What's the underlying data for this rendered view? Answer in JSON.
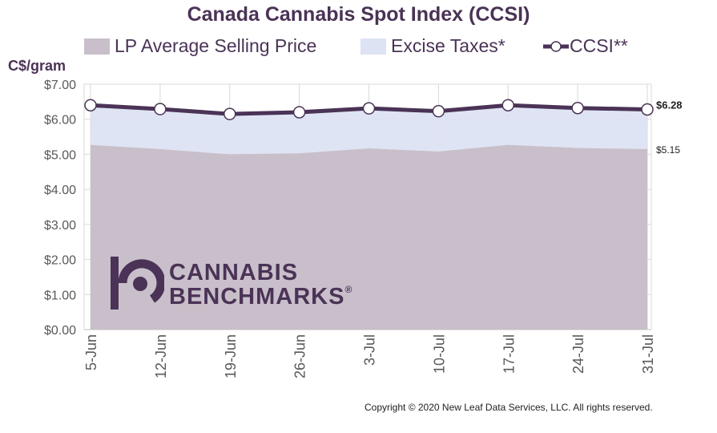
{
  "chart_data": {
    "type": "area",
    "title": "Canada Cannabis Spot Index (CCSI)",
    "ylabel": "C$/gram",
    "xlabel": "",
    "categories": [
      "5-Jun",
      "12-Jun",
      "19-Jun",
      "26-Jun",
      "3-Jul",
      "10-Jul",
      "17-Jul",
      "24-Jul",
      "31-Jul"
    ],
    "ylim": [
      0,
      7
    ],
    "yticks": [
      "$0.00",
      "$1.00",
      "$2.00",
      "$3.00",
      "$4.00",
      "$5.00",
      "$6.00",
      "$7.00"
    ],
    "grid": true,
    "legend_position": "top",
    "series": [
      {
        "name": "LP Average Selling Price",
        "kind": "area",
        "color": "#c8bfca",
        "values": [
          5.27,
          5.15,
          5.0,
          5.03,
          5.17,
          5.08,
          5.27,
          5.18,
          5.15
        ]
      },
      {
        "name": "Excise Taxes*",
        "kind": "stacked-area",
        "color": "#dde3f3",
        "values": [
          1.13,
          1.14,
          1.15,
          1.17,
          1.14,
          1.15,
          1.13,
          1.14,
          1.13
        ]
      },
      {
        "name": "CCSI**",
        "kind": "line",
        "color": "#4a3356",
        "values": [
          6.4,
          6.29,
          6.15,
          6.2,
          6.31,
          6.23,
          6.4,
          6.32,
          6.28
        ]
      }
    ],
    "annotations": [
      "$6.28",
      "$5.15"
    ]
  },
  "watermark": {
    "line1": "CANNABIS",
    "line2": "BENCHMARKS",
    "mark": "®"
  },
  "copyright": "Copyright © 2020 New Leaf Data Services, LLC. All rights reserved."
}
